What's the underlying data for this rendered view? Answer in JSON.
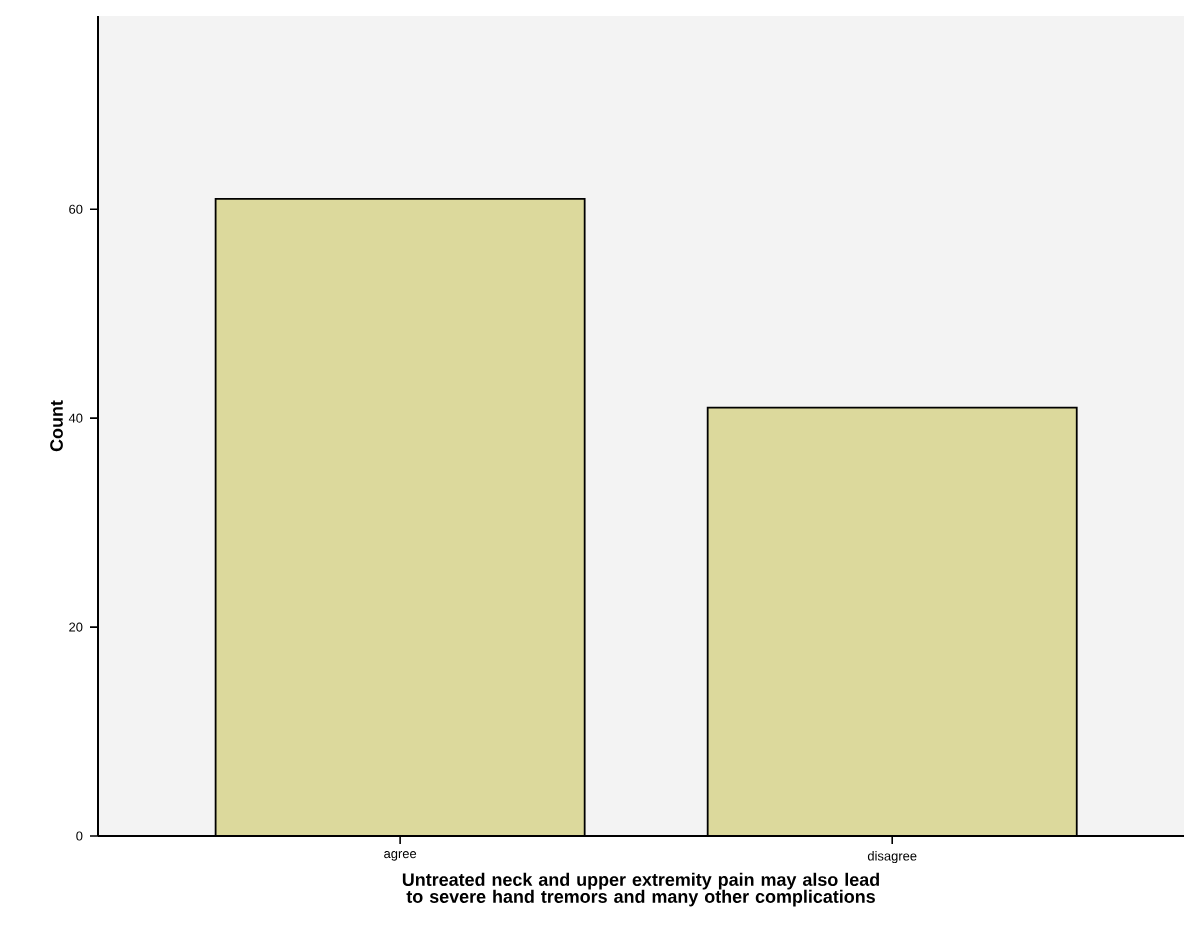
{
  "chart_data": {
    "type": "bar",
    "xlabel": "Untreated neck and upper extremity pain may also lead to severe hand tremors and many other complications",
    "ylabel": "Count",
    "categories": [
      "agree",
      "disagree"
    ],
    "values": [
      61,
      41
    ],
    "color": "#dcd99c",
    "ylim": [
      0,
      78.5
    ],
    "yticks": [
      0,
      20,
      40,
      60
    ],
    "grid": false
  }
}
